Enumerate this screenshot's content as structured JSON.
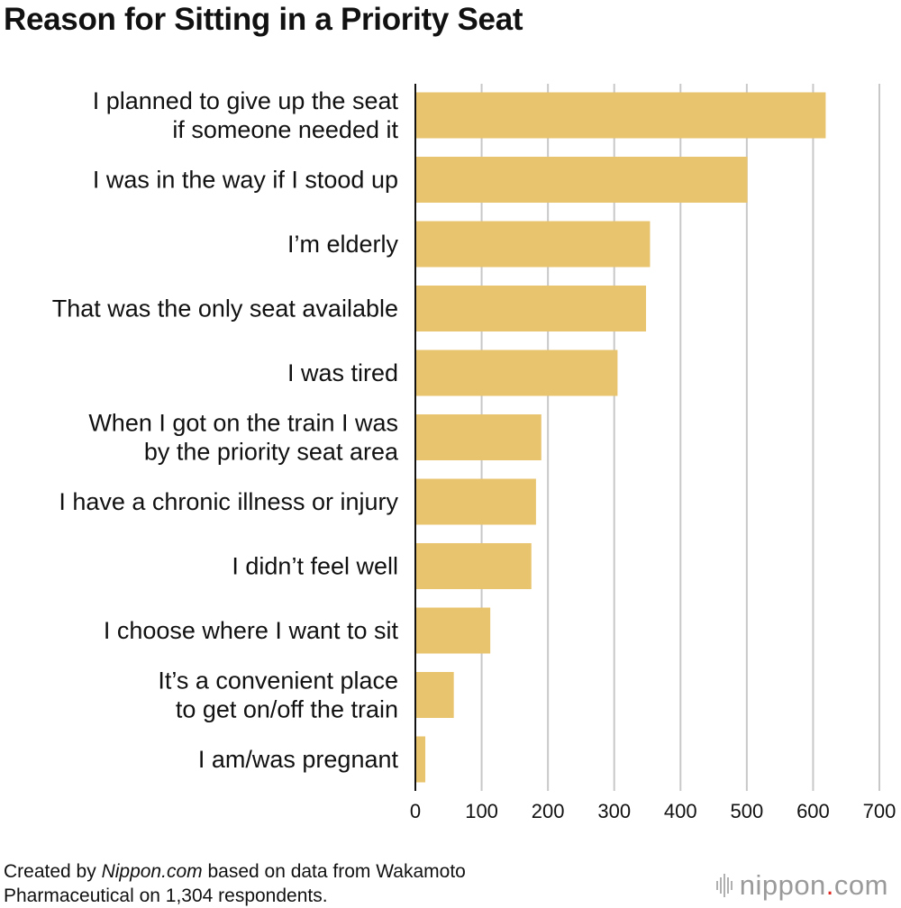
{
  "chart_data": {
    "type": "bar",
    "orientation": "horizontal",
    "title": "Reason for Sitting in a Priority Seat",
    "categories": [
      [
        "I planned to give up the seat",
        "if someone needed it"
      ],
      [
        "I was in the way if I stood up"
      ],
      [
        "I’m elderly"
      ],
      [
        "That was the only seat available"
      ],
      [
        "I was tired"
      ],
      [
        "When I got on the train I was",
        "by the priority seat area"
      ],
      [
        "I have a chronic illness or injury"
      ],
      [
        "I didn’t feel well"
      ],
      [
        "I choose where I want to sit"
      ],
      [
        "It’s a convenient place",
        "to get on/off the train"
      ],
      [
        "I am/was pregnant"
      ]
    ],
    "values": [
      619,
      501,
      354,
      348,
      305,
      190,
      182,
      175,
      113,
      58,
      15
    ],
    "xlim": [
      0,
      700
    ],
    "xticks": [
      0,
      100,
      200,
      300,
      400,
      500,
      600,
      700
    ],
    "grid": true,
    "bar_color": "#e8c46e",
    "grid_color": "#c8c8c8"
  },
  "footer": {
    "prefix": "Created by ",
    "brand": "Nippon.com",
    "suffix": " based on data from Wakamoto",
    "line2": "Pharmaceutical on 1,304 respondents."
  },
  "logo": {
    "name": "nippon",
    "dot": ".",
    "tld": "com"
  }
}
